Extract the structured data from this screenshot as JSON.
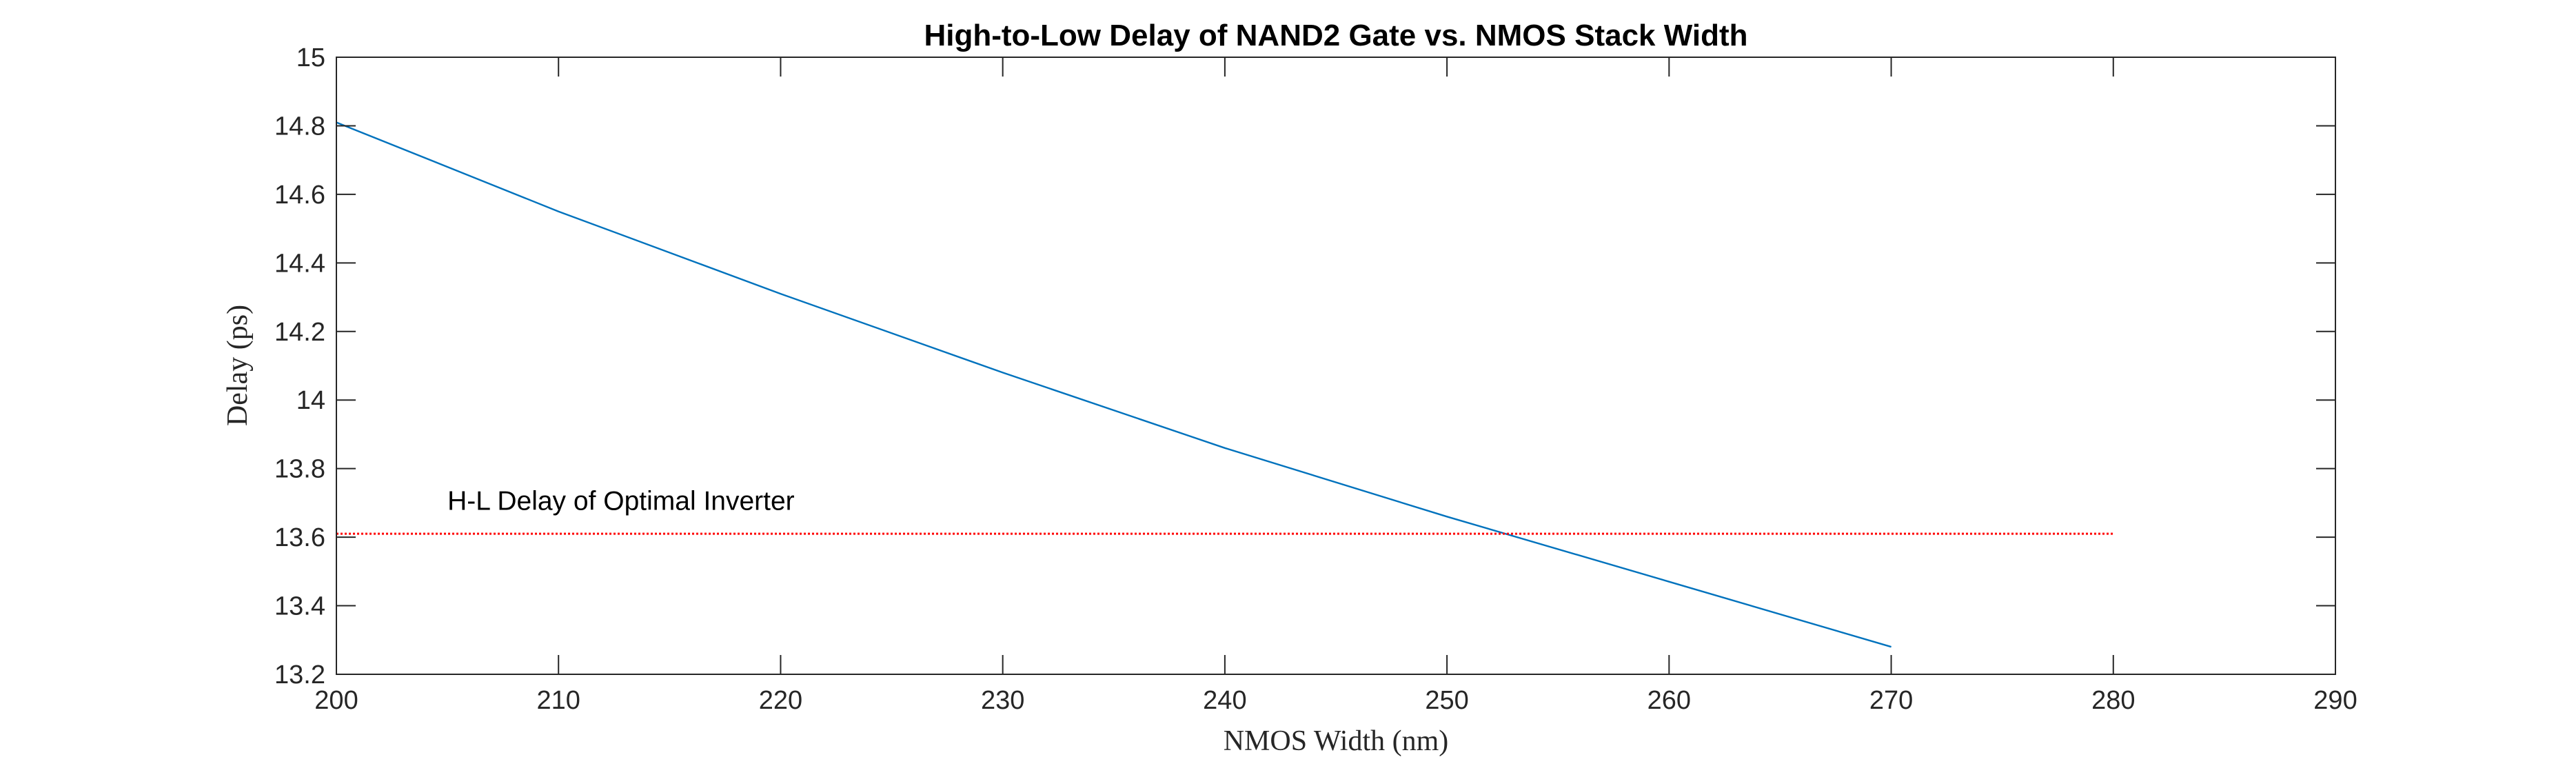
{
  "chart_data": {
    "type": "line",
    "title": "High-to-Low Delay of NAND2 Gate vs. NMOS Stack Width",
    "xlabel": "NMOS Width (nm)",
    "ylabel": "Delay (ps)",
    "xlim": [
      200,
      290
    ],
    "ylim": [
      13.2,
      15
    ],
    "xticks": [
      200,
      210,
      220,
      230,
      240,
      250,
      260,
      270,
      280,
      290
    ],
    "yticks": [
      13.2,
      13.4,
      13.6,
      13.8,
      14,
      14.2,
      14.4,
      14.6,
      14.8,
      15
    ],
    "xtick_labels": [
      "200",
      "210",
      "220",
      "230",
      "240",
      "250",
      "260",
      "270",
      "280",
      "290"
    ],
    "ytick_labels": [
      "13.2",
      "13.4",
      "13.6",
      "13.8",
      "14",
      "14.2",
      "14.4",
      "14.6",
      "14.8",
      "15"
    ],
    "grid": false,
    "series": [
      {
        "color": "#0072BD",
        "x": [
          200,
          210,
          220,
          230,
          240,
          250,
          260,
          270
        ],
        "y": [
          14.81,
          14.55,
          14.31,
          14.08,
          13.86,
          13.66,
          13.47,
          13.28
        ]
      },
      {
        "color": "#FF0000",
        "style": "dotted",
        "x": [
          200,
          280
        ],
        "y": [
          13.61,
          13.61
        ]
      }
    ],
    "annotations": [
      {
        "text": "H-L Delay of Optimal Inverter",
        "x": 205,
        "y": 13.68
      }
    ]
  }
}
